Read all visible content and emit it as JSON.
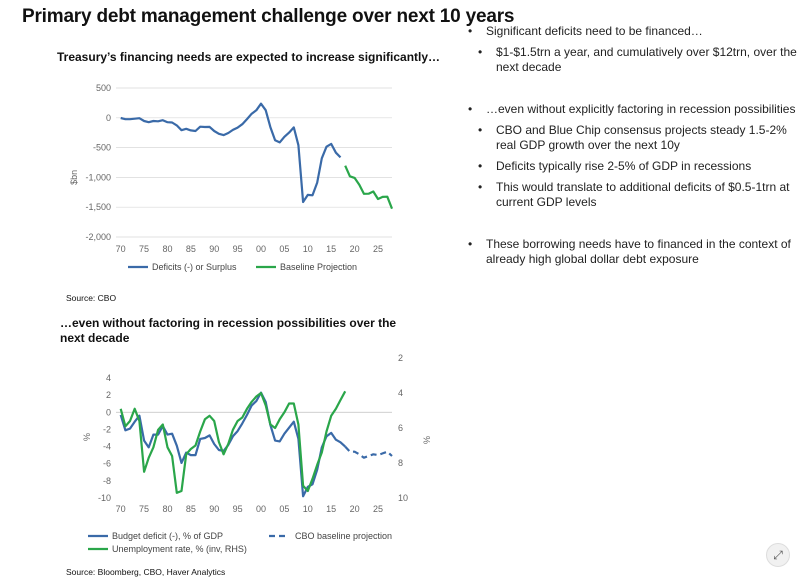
{
  "page_title": "Primary debt management challenge over next 10 years",
  "chart1_title": "Treasury’s financing needs are expected to increase significantly…",
  "chart1_source": "Source: CBO",
  "chart2_title_line1": "…even without factoring in recession possibilities over the",
  "chart2_title_line2": "next decade",
  "chart2_source": "Source: Bloomberg, CBO, Haver Analytics",
  "bullets": {
    "b1": "Significant deficits need to be financed…",
    "b1a": "$1-$1.5trn a year, and cumulatively over $12trn, over the next decade",
    "b2": "…even without explicitly factoring in recession possibilities",
    "b2a": "CBO and Blue Chip consensus projects steady 1.5-2% real GDP growth over the next 10y",
    "b2b": "Deficits typically rise 2-5% of GDP in recessions",
    "b2c": "This would translate to additional deficits of $0.5-1trn at current GDP levels",
    "b3": "These borrowing needs have to financed in the context of already high global dollar debt exposure"
  },
  "chart_data": [
    {
      "type": "line",
      "ylabel": "$bn",
      "ylim": [
        -2000,
        500
      ],
      "xlim": [
        1969,
        2028
      ],
      "x_ticks": [
        "70",
        "75",
        "80",
        "85",
        "90",
        "95",
        "00",
        "05",
        "10",
        "15",
        "20",
        "25"
      ],
      "y_ticks": [
        "500",
        "0",
        "-500",
        "-1,000",
        "-1,500",
        "-2,000"
      ],
      "colors": {
        "deficit": "#3a6aa8",
        "baseline": "#2aa64a"
      },
      "series": [
        {
          "name": "Deficits (-) or Surplus",
          "x": [
            1970,
            1971,
            1972,
            1973,
            1974,
            1975,
            1976,
            1977,
            1978,
            1979,
            1980,
            1981,
            1982,
            1983,
            1984,
            1985,
            1986,
            1987,
            1988,
            1989,
            1990,
            1991,
            1992,
            1993,
            1994,
            1995,
            1996,
            1997,
            1998,
            1999,
            2000,
            2001,
            2002,
            2003,
            2004,
            2005,
            2006,
            2007,
            2008,
            2009,
            2010,
            2011,
            2012,
            2013,
            2014,
            2015,
            2016,
            2017
          ],
          "values": [
            -3,
            -23,
            -23,
            -15,
            -6,
            -53,
            -74,
            -54,
            -59,
            -41,
            -74,
            -79,
            -128,
            -208,
            -185,
            -212,
            -221,
            -150,
            -155,
            -153,
            -221,
            -269,
            -290,
            -255,
            -203,
            -164,
            -107,
            -22,
            69,
            126,
            236,
            128,
            -158,
            -378,
            -413,
            -318,
            -248,
            -161,
            -459,
            -1413,
            -1294,
            -1300,
            -1087,
            -680,
            -485,
            -438,
            -585,
            -665
          ]
        },
        {
          "name": "Baseline Projection",
          "x": [
            2018,
            2019,
            2020,
            2021,
            2022,
            2023,
            2024,
            2025,
            2026,
            2027,
            2028
          ],
          "values": [
            -804,
            -981,
            -1008,
            -1123,
            -1276,
            -1273,
            -1237,
            -1363,
            -1328,
            -1324,
            -1526
          ]
        }
      ]
    },
    {
      "type": "line",
      "ylabel": "%",
      "ylabel_right": "%",
      "ylim": [
        -10,
        4
      ],
      "ylim_right_inverted": [
        2,
        10
      ],
      "xlim": [
        1969,
        2028
      ],
      "x_ticks": [
        "70",
        "75",
        "80",
        "85",
        "90",
        "95",
        "00",
        "05",
        "10",
        "15",
        "20",
        "25"
      ],
      "y_ticks": [
        "4",
        "2",
        "0",
        "-2",
        "-4",
        "-6",
        "-8",
        "-10"
      ],
      "y_ticks_right": [
        "2",
        "4",
        "6",
        "8",
        "10"
      ],
      "colors": {
        "deficit": "#3a6aa8",
        "unemployment": "#2aa64a"
      },
      "series": [
        {
          "name": "Budget deficit (-), % of GDP",
          "x": [
            1970,
            1971,
            1972,
            1973,
            1974,
            1975,
            1976,
            1977,
            1978,
            1979,
            1980,
            1981,
            1982,
            1983,
            1984,
            1985,
            1986,
            1987,
            1988,
            1989,
            1990,
            1991,
            1992,
            1993,
            1994,
            1995,
            1996,
            1997,
            1998,
            1999,
            2000,
            2001,
            2002,
            2003,
            2004,
            2005,
            2006,
            2007,
            2008,
            2009,
            2010,
            2011,
            2012,
            2013,
            2014,
            2015,
            2016,
            2017,
            2018
          ],
          "values": [
            -0.3,
            -2.1,
            -1.9,
            -1.1,
            -0.4,
            -3.3,
            -4.1,
            -2.6,
            -2.6,
            -1.6,
            -2.6,
            -2.5,
            -3.9,
            -5.9,
            -4.7,
            -5.0,
            -5.0,
            -3.1,
            -3.0,
            -2.7,
            -3.7,
            -4.4,
            -4.5,
            -3.8,
            -2.8,
            -2.2,
            -1.3,
            -0.3,
            0.8,
            1.3,
            2.3,
            1.2,
            -1.5,
            -3.3,
            -3.4,
            -2.5,
            -1.8,
            -1.1,
            -3.1,
            -9.8,
            -8.7,
            -8.4,
            -6.7,
            -4.1,
            -2.8,
            -2.4,
            -3.2,
            -3.5,
            -4.0
          ]
        },
        {
          "name": "CBO baseline projection",
          "x": [
            2018,
            2019,
            2020,
            2021,
            2022,
            2023,
            2024,
            2025,
            2026,
            2027,
            2028
          ],
          "values": [
            -4.0,
            -4.6,
            -4.6,
            -4.9,
            -5.3,
            -5.1,
            -4.9,
            -5.0,
            -4.8,
            -4.6,
            -5.1
          ]
        },
        {
          "name": "Unemployment rate, % (inv, RHS)",
          "x": [
            1970,
            1971,
            1972,
            1973,
            1974,
            1975,
            1976,
            1977,
            1978,
            1979,
            1980,
            1981,
            1982,
            1983,
            1984,
            1985,
            1986,
            1987,
            1988,
            1989,
            1990,
            1991,
            1992,
            1993,
            1994,
            1995,
            1996,
            1997,
            1998,
            1999,
            2000,
            2001,
            2002,
            2003,
            2004,
            2005,
            2006,
            2007,
            2008,
            2009,
            2010,
            2011,
            2012,
            2013,
            2014,
            2015,
            2016,
            2017,
            2018
          ],
          "values": [
            4.9,
            5.9,
            5.6,
            4.9,
            5.6,
            8.5,
            7.7,
            7.1,
            6.1,
            5.8,
            7.1,
            7.6,
            9.7,
            9.6,
            7.5,
            7.2,
            7.0,
            6.2,
            5.5,
            5.3,
            5.6,
            6.8,
            7.5,
            6.9,
            6.1,
            5.6,
            5.4,
            4.9,
            4.5,
            4.2,
            4.0,
            4.7,
            5.8,
            6.0,
            5.5,
            5.1,
            4.6,
            4.6,
            5.8,
            9.3,
            9.6,
            8.9,
            8.1,
            7.4,
            6.2,
            5.3,
            4.9,
            4.4,
            3.9
          ]
        }
      ]
    }
  ]
}
